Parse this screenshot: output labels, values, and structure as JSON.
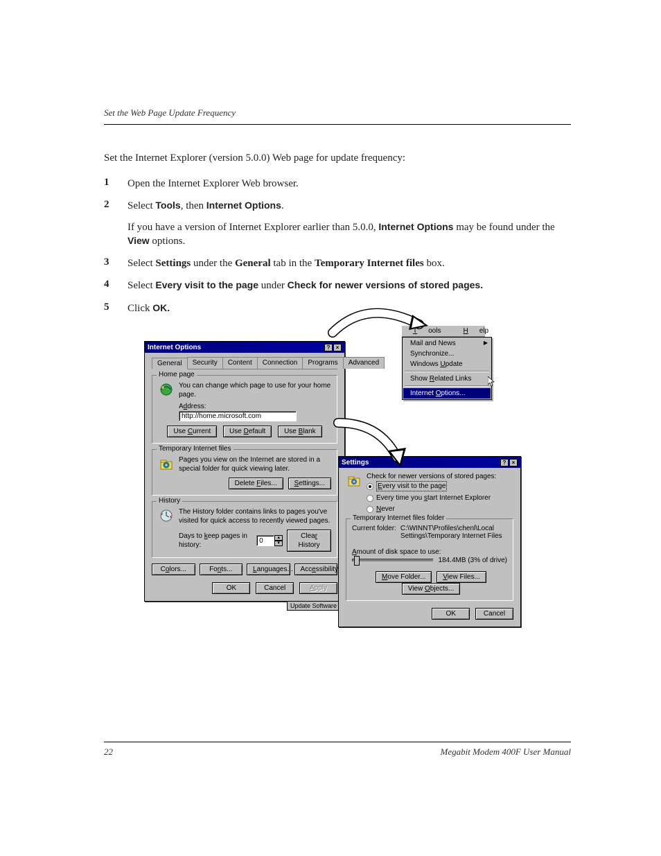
{
  "header_title": "Set the Web Page Update Frequency",
  "intro_text": "Set the Internet Explorer (version 5.0.0) Web page for update frequency:",
  "steps": [
    {
      "num": "1",
      "parts": [
        {
          "t": "Open the Internet Explorer Web browser.",
          "c": ""
        }
      ]
    },
    {
      "num": "2",
      "parts": [
        {
          "t": "Select ",
          "c": ""
        },
        {
          "t": "Tools",
          "c": "bold-sans"
        },
        {
          "t": ", then ",
          "c": ""
        },
        {
          "t": "Internet Options",
          "c": "bold-sans"
        },
        {
          "t": ".",
          "c": ""
        }
      ],
      "sub": [
        {
          "t": "If you have a version of Internet Explorer earlier than 5.0.0, ",
          "c": ""
        },
        {
          "t": "Internet Options",
          "c": "bold-sans"
        },
        {
          "t": " may be found under the ",
          "c": ""
        },
        {
          "t": "View",
          "c": "bold-sans"
        },
        {
          "t": " options.",
          "c": ""
        }
      ]
    },
    {
      "num": "3",
      "parts": [
        {
          "t": "Select ",
          "c": ""
        },
        {
          "t": "Settings",
          "c": "bold-serif"
        },
        {
          "t": " under the ",
          "c": ""
        },
        {
          "t": "General",
          "c": "bold-serif"
        },
        {
          "t": " tab in the ",
          "c": ""
        },
        {
          "t": "Temporary Internet files",
          "c": "bold-serif"
        },
        {
          "t": " box.",
          "c": ""
        }
      ]
    },
    {
      "num": "4",
      "parts": [
        {
          "t": "Select ",
          "c": ""
        },
        {
          "t": "Every visit to the page",
          "c": "bold-sans"
        },
        {
          "t": " under ",
          "c": ""
        },
        {
          "t": "Check for newer versions of stored pages.",
          "c": "bold-sans"
        }
      ]
    },
    {
      "num": "5",
      "parts": [
        {
          "t": "Click ",
          "c": ""
        },
        {
          "t": "OK.",
          "c": "bold-sans"
        }
      ]
    }
  ],
  "menubar": {
    "tools": "Tools",
    "help": "Help"
  },
  "menu_items": {
    "mail": "Mail and News",
    "sync": "Synchronize...",
    "winupd": "Windows Update",
    "related": "Show Related Links",
    "iopts": "Internet Options..."
  },
  "dialog1": {
    "title": "Internet Options",
    "tabs": [
      "General",
      "Security",
      "Content",
      "Connection",
      "Programs",
      "Advanced"
    ],
    "homepage": {
      "title": "Home page",
      "text": "You can change which page to use for your home page.",
      "addr_label": "Address:",
      "addr_value": "http://home.microsoft.com",
      "btn_current": "Use Current",
      "btn_default": "Use Default",
      "btn_blank": "Use Blank"
    },
    "tempfiles": {
      "title": "Temporary Internet files",
      "text": "Pages you view on the Internet are stored in a special folder for quick viewing later.",
      "btn_delete": "Delete Files...",
      "btn_settings": "Settings..."
    },
    "history": {
      "title": "History",
      "text": "The History folder contains links to pages you've visited for quick access to recently viewed pages.",
      "days_label": "Days to keep pages in history:",
      "days_value": "0",
      "btn_clear": "Clear History"
    },
    "bottom": {
      "colors": "Colors...",
      "fonts": "Fonts...",
      "languages": "Languages...",
      "accessibility": "Accessibility..."
    },
    "ok": "OK",
    "cancel": "Cancel",
    "apply": "Apply",
    "update_label": "Update Software"
  },
  "dialog2": {
    "title": "Settings",
    "check_label": "Check for newer versions of stored pages:",
    "r1": "Every visit to the page",
    "r2": "Every time you start Internet Explorer",
    "r3": "Never",
    "tif_title": "Temporary Internet files folder",
    "current_label": "Current folder:",
    "current_value": "C:\\WINNT\\Profiles\\chenl\\Local Settings\\Temporary Internet Files",
    "disk_label": "Amount of disk space to use:",
    "disk_value": "184.4MB (3% of drive)",
    "btn_move": "Move Folder...",
    "btn_viewf": "View Files...",
    "btn_viewo": "View Objects...",
    "ok": "OK",
    "cancel": "Cancel"
  },
  "footer": {
    "page": "22",
    "manual": "Megabit Modem 400F User Manual"
  }
}
